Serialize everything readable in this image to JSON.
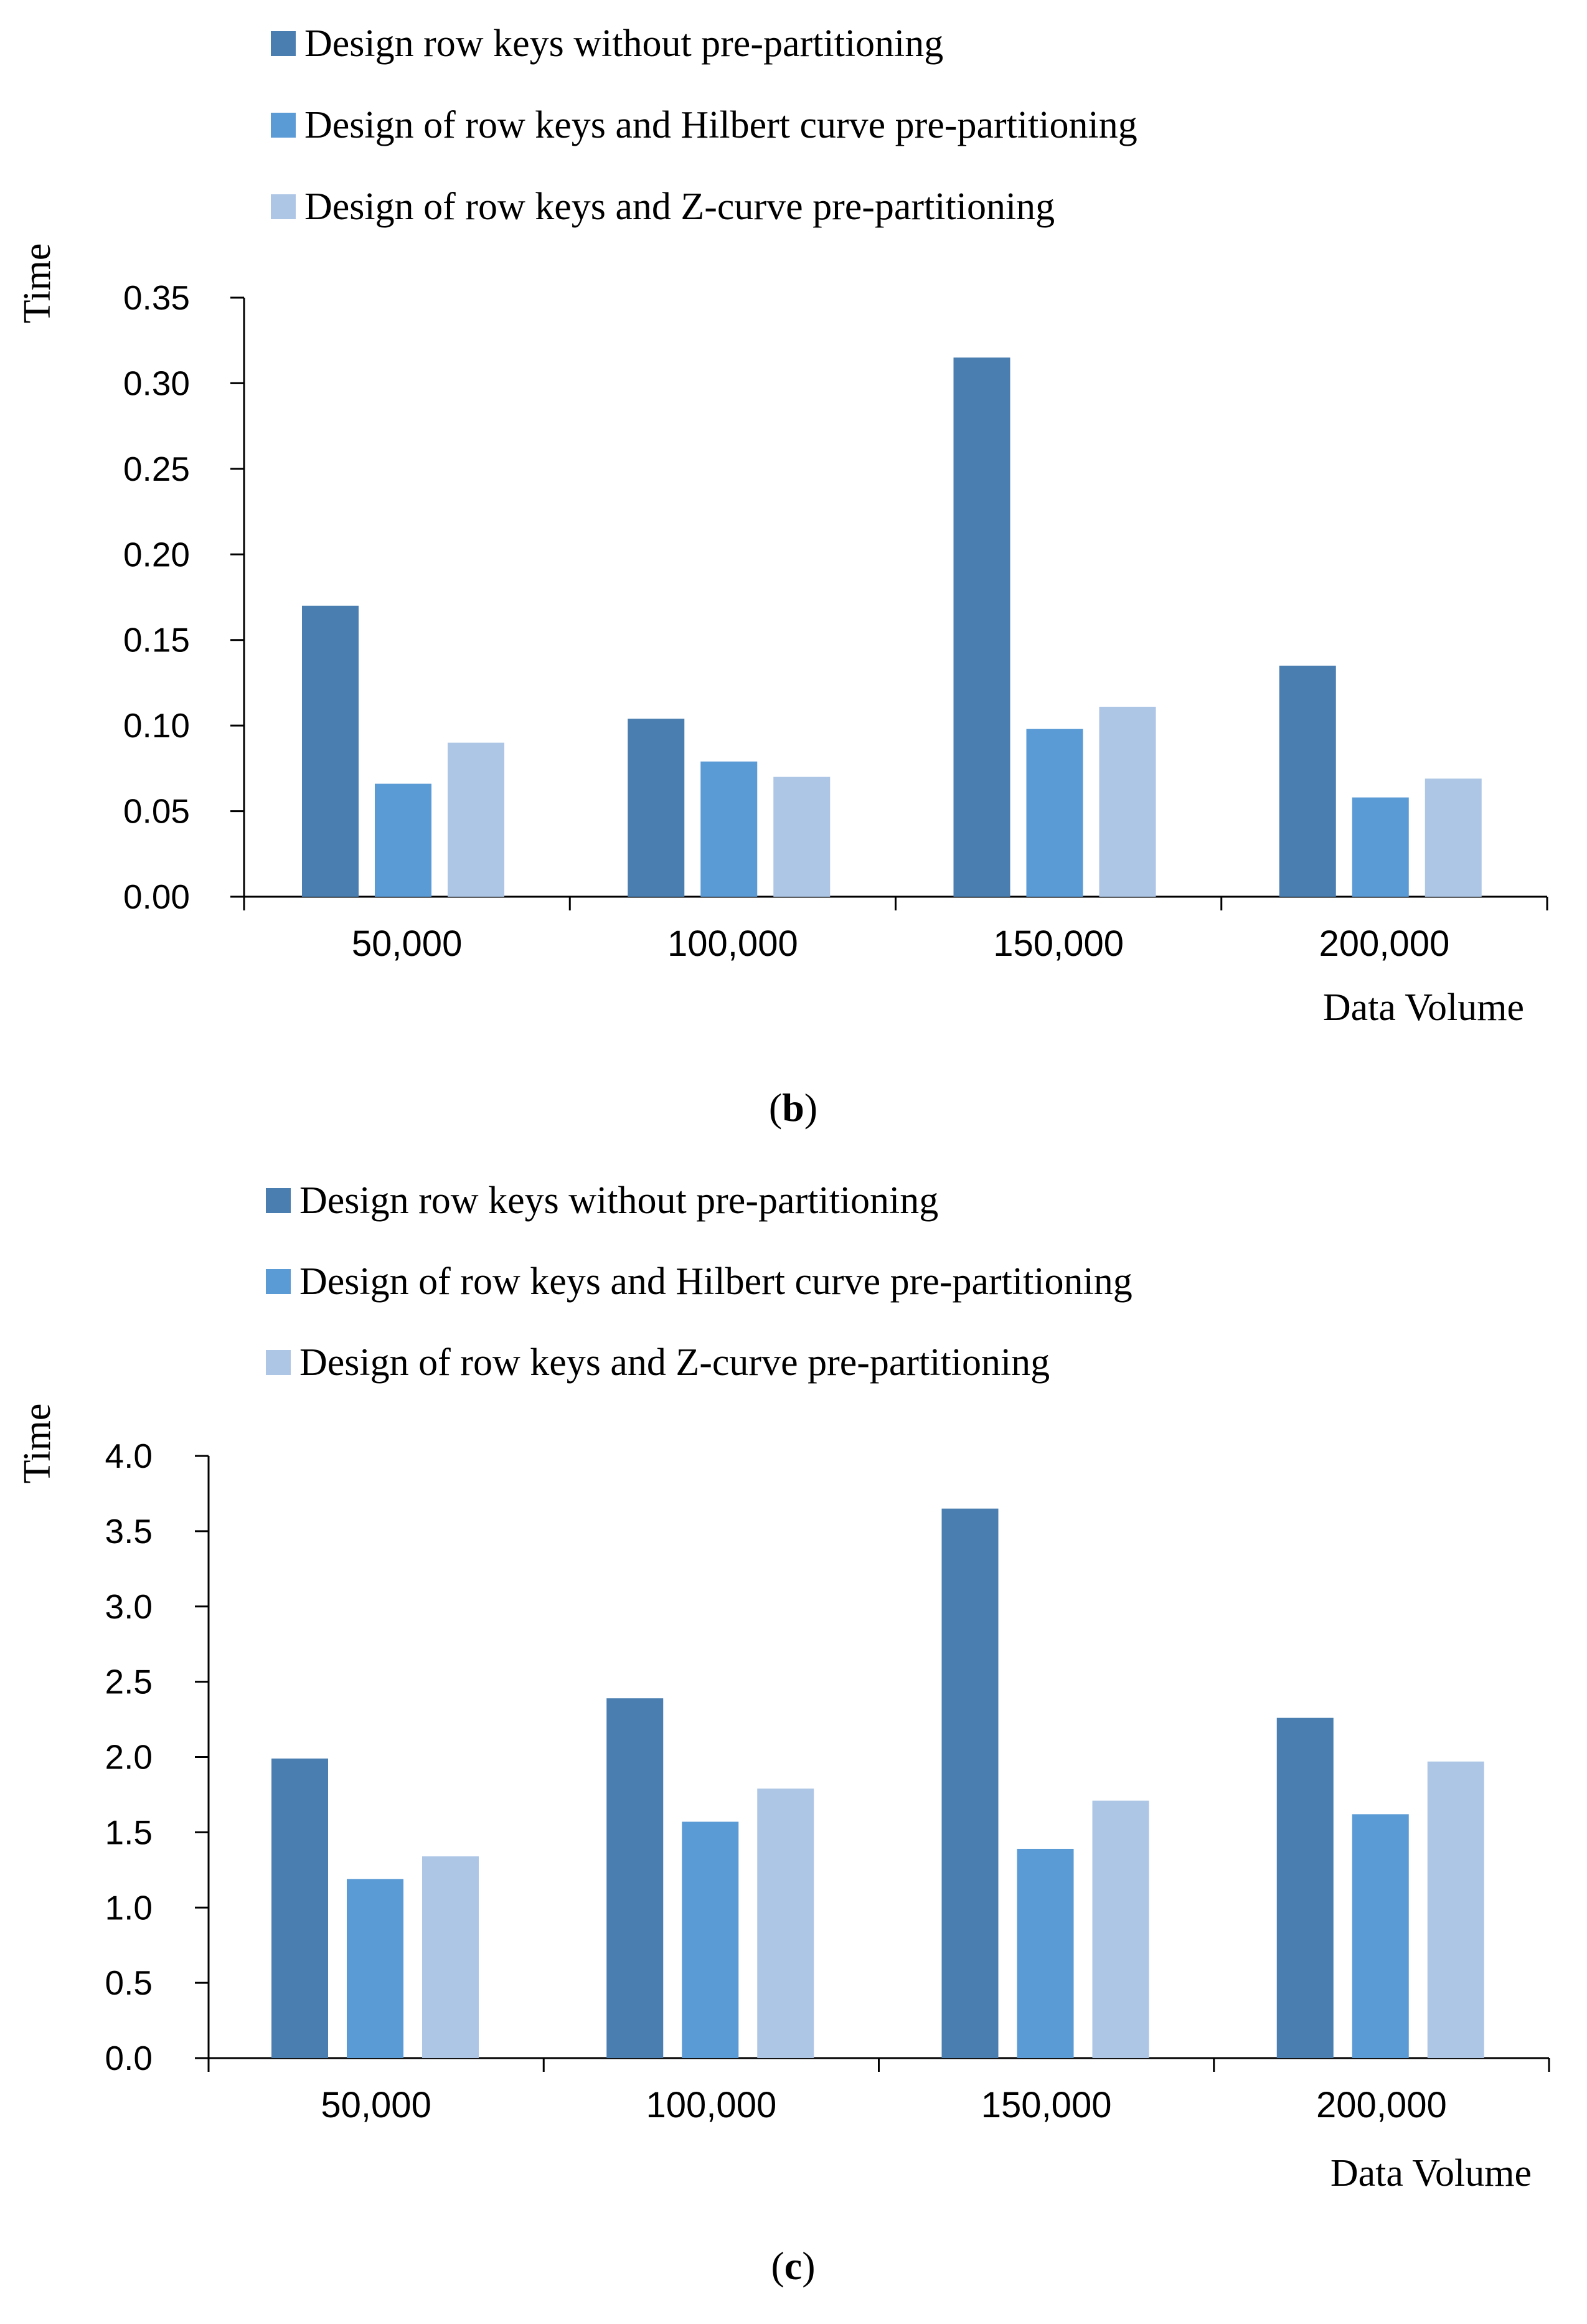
{
  "chart_data": [
    {
      "id": "b",
      "type": "bar",
      "caption": {
        "open": "(",
        "letter": "b",
        "close": ")"
      },
      "categories": [
        "50,000",
        "100,000",
        "150,000",
        "200,000"
      ],
      "series": [
        {
          "name": "Design row keys without pre-partitioning",
          "color": "#4a7eb0",
          "values": [
            0.17,
            0.104,
            0.315,
            0.135
          ]
        },
        {
          "name": "Design of row keys and Hilbert curve pre-partitioning",
          "color": "#5b9bd5",
          "values": [
            0.066,
            0.079,
            0.098,
            0.058
          ]
        },
        {
          "name": "Design of row keys and Z-curve pre-partitioning",
          "color": "#adc6e6",
          "values": [
            0.09,
            0.07,
            0.111,
            0.069
          ]
        }
      ],
      "ylabel": "Time",
      "xlabel": "Data Volume",
      "ylim": [
        0,
        0.35
      ],
      "yticks": [
        "0.00",
        "0.05",
        "0.10",
        "0.15",
        "0.20",
        "0.25",
        "0.30",
        "0.35"
      ],
      "grid": false,
      "legend": "top-left"
    },
    {
      "id": "c",
      "type": "bar",
      "caption": {
        "open": "(",
        "letter": "c",
        "close": ")"
      },
      "categories": [
        "50,000",
        "100,000",
        "150,000",
        "200,000"
      ],
      "series": [
        {
          "name": "Design row keys without pre-partitioning",
          "color": "#4a7eb0",
          "values": [
            1.99,
            2.39,
            3.65,
            2.26
          ]
        },
        {
          "name": "Design of row keys and Hilbert curve pre-partitioning",
          "color": "#5b9bd5",
          "values": [
            1.19,
            1.57,
            1.39,
            1.62
          ]
        },
        {
          "name": "Design of row keys and Z-curve pre-partitioning",
          "color": "#adc6e6",
          "values": [
            1.34,
            1.79,
            1.71,
            1.97
          ]
        }
      ],
      "ylabel": "Time",
      "xlabel": "Data Volume",
      "ylim": [
        0,
        4.0
      ],
      "yticks": [
        "0.0",
        "0.5",
        "1.0",
        "1.5",
        "2.0",
        "2.5",
        "3.0",
        "3.5",
        "4.0"
      ],
      "grid": false,
      "legend": "top-left"
    }
  ]
}
